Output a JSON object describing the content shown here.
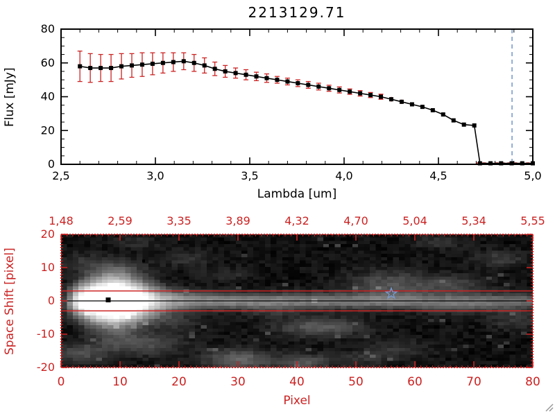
{
  "window_title": "2213129.71",
  "icons": {
    "resize_grip": "diagonal-grip-lines"
  },
  "colors": {
    "axis_black": "#000000",
    "axis_red": "#cc2222",
    "error_red": "#cc2222",
    "vline_blue": "#6f94c8",
    "star_blue": "#7799cc",
    "background": "#ffffff"
  },
  "chart_data": [
    {
      "type": "line",
      "title": "2213129.71",
      "xlabel": "Lambda [um]",
      "ylabel": "Flux [mJy]",
      "xlim": [
        2.5,
        5.0
      ],
      "ylim": [
        0,
        80
      ],
      "grid": false,
      "legend": "none",
      "x_ticks": {
        "values": [
          2.5,
          3.0,
          3.5,
          4.0,
          4.5,
          5.0
        ],
        "labels": [
          "2,5",
          "3,0",
          "3,5",
          "4,0",
          "4,5",
          "5,0"
        ],
        "minor_step": 0.1
      },
      "y_ticks": {
        "values": [
          0,
          20,
          40,
          60,
          80
        ],
        "labels": [
          "0",
          "20",
          "40",
          "60",
          "80"
        ],
        "minor_step": 5
      },
      "marker": "filled-square",
      "line_color": "#000000",
      "error_color": "#cc2222",
      "x": [
        2.6,
        2.655,
        2.71,
        2.765,
        2.82,
        2.875,
        2.93,
        2.985,
        3.04,
        3.095,
        3.15,
        3.205,
        3.26,
        3.315,
        3.37,
        3.425,
        3.48,
        3.535,
        3.59,
        3.645,
        3.7,
        3.755,
        3.81,
        3.865,
        3.92,
        3.975,
        4.03,
        4.085,
        4.14,
        4.195,
        4.25,
        4.305,
        4.36,
        4.415,
        4.47,
        4.525,
        4.58,
        4.635,
        4.69,
        4.72,
        4.776,
        4.832,
        4.888,
        4.944,
        5.0
      ],
      "y": [
        58,
        57,
        57,
        57,
        58,
        58.5,
        59,
        59.5,
        60,
        60.5,
        61,
        60,
        58.5,
        56.5,
        55,
        54,
        53,
        52,
        51,
        50,
        49,
        48,
        47,
        46,
        45,
        44,
        43,
        42,
        41,
        40,
        38.5,
        37,
        35.5,
        34,
        32,
        29.5,
        26,
        23.5,
        23,
        0.6,
        0.6,
        0.6,
        0.6,
        0.6,
        0.6
      ],
      "yerr": [
        9,
        8.5,
        8,
        8,
        7.5,
        7,
        7,
        6.5,
        6,
        5.5,
        5,
        5,
        4.5,
        4,
        3.5,
        3,
        3,
        2.5,
        2.5,
        2,
        2,
        2,
        2,
        2,
        1.8,
        1.8,
        1.6,
        1.6,
        1.5,
        1.5,
        1.4,
        1.3,
        1.2,
        1.2,
        1.1,
        1,
        1,
        1,
        1,
        0.3,
        0.3,
        0.3,
        0.3,
        0.3,
        0.3
      ],
      "vline": {
        "x": 4.89,
        "style": "dashed",
        "color": "#6f94c8"
      },
      "zero_dashed_line": {
        "x1": 4.7,
        "x2": 5.0,
        "y": 0.8,
        "color": "#cc2222"
      }
    },
    {
      "type": "heatmap",
      "title": "",
      "xlabel": "Pixel",
      "ylabel": "Space Shift [pixel]",
      "xlim": [
        0,
        80
      ],
      "ylim": [
        -20,
        20
      ],
      "axis_color": "#cc2222",
      "x_ticks": {
        "values": [
          0,
          10,
          20,
          30,
          40,
          50,
          60,
          70,
          80
        ],
        "labels": [
          "0",
          "10",
          "20",
          "30",
          "40",
          "50",
          "60",
          "70",
          "80"
        ],
        "minor_step": 1
      },
      "y_ticks": {
        "values": [
          -20,
          -10,
          0,
          10,
          20
        ],
        "labels": [
          "-20",
          "-10",
          "0",
          "10",
          "20"
        ],
        "minor_step": 1
      },
      "top_axis_labels": {
        "positions": [
          0,
          10,
          20,
          30,
          40,
          50,
          60,
          70,
          80
        ],
        "labels": [
          "1,48",
          "2,59",
          "3,35",
          "3,89",
          "4,32",
          "4,70",
          "5,04",
          "5,34",
          "5,55"
        ]
      },
      "overlays": {
        "aperture_lines_y": [
          3,
          -3
        ],
        "aperture_color": "#cc2222",
        "center_line_y": 0,
        "center_color": "#000000",
        "square_marker": {
          "x": 8,
          "y": 0.3,
          "color": "#000000"
        },
        "star_marker": {
          "x": 56,
          "y": 2.2,
          "color": "#7799cc"
        },
        "dots": [
          [
            14,
            12
          ]
        ]
      },
      "trace_model": {
        "peak_x": 8.5,
        "peak_amp": 1.1,
        "peak_sigma_x": 4.5,
        "base_amp": 0.5,
        "base_decay": 90,
        "band_floor": 0.1,
        "sigma_y_base": 1.6,
        "sigma_y_peak": 3.2,
        "sigma_y_spread": 6,
        "left_fade": 3,
        "bg": 0.04,
        "gamma": 0.85
      },
      "blobs": [
        [
          3,
          -16,
          3,
          2,
          0.2
        ],
        [
          13,
          -13,
          5,
          2.5,
          0.22
        ],
        [
          30,
          -18,
          4,
          2.2,
          0.3
        ],
        [
          41,
          -19,
          3,
          1.8,
          0.22
        ],
        [
          44,
          -8,
          5,
          2,
          0.26
        ],
        [
          56,
          5,
          5,
          3,
          0.22
        ],
        [
          67,
          5,
          4,
          2,
          0.16
        ],
        [
          75,
          13,
          3,
          1.8,
          0.14
        ],
        [
          21,
          13,
          3,
          1.8,
          0.1
        ],
        [
          9,
          10,
          4,
          2,
          0.12
        ],
        [
          57,
          -15,
          4,
          2,
          0.12
        ],
        [
          69,
          -2,
          6,
          1.6,
          0.12
        ],
        [
          18,
          -6,
          4,
          2,
          0.12
        ],
        [
          3,
          12,
          2.5,
          1.8,
          0.1
        ],
        [
          36,
          -3,
          4,
          1.5,
          0.1
        ],
        [
          50,
          -18,
          4,
          1.5,
          0.1
        ],
        [
          28,
          8,
          3,
          1.5,
          0.08
        ],
        [
          12,
          18,
          3,
          1.5,
          0.08
        ],
        [
          77,
          -6,
          3,
          2,
          0.12
        ],
        [
          64,
          18,
          3,
          1.5,
          0.1
        ]
      ],
      "noise_seed": 42,
      "noise_amp": 0.08
    }
  ]
}
